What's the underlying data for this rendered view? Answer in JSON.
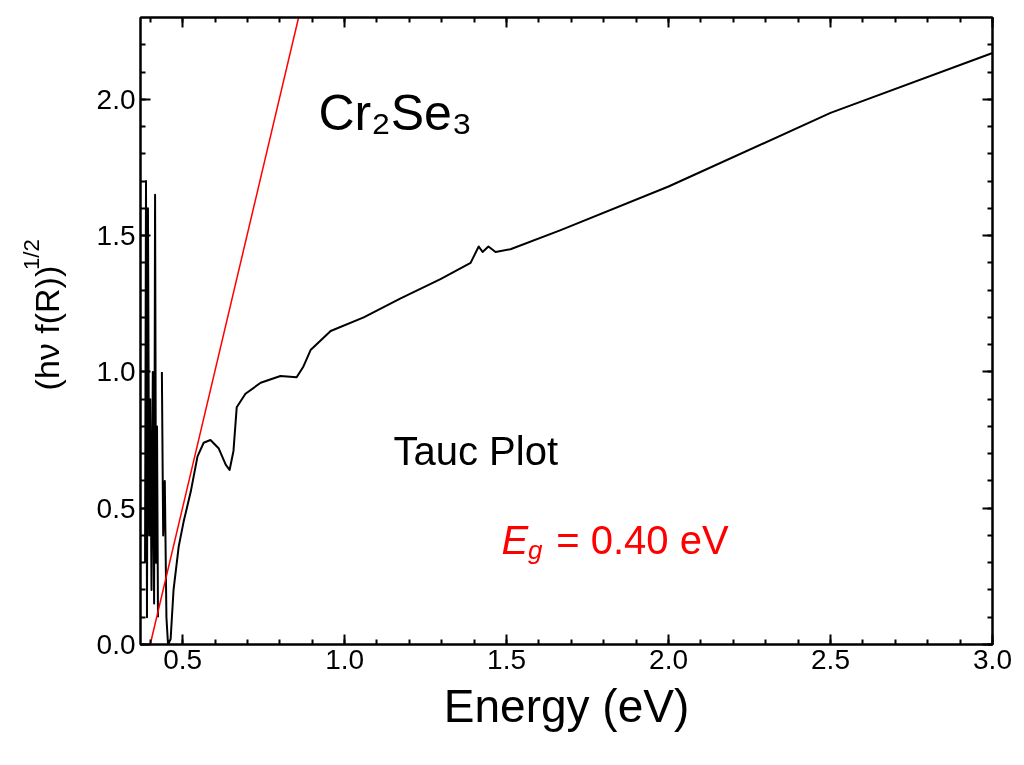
{
  "chart_data": {
    "type": "line",
    "xlabel": "Energy (eV)",
    "ylabel": "(hν f(R))$^{1/2}$",
    "annotations": [
      "Cr₂Se₃",
      "Tauc Plot"
    ],
    "xlim": [
      0.37,
      3.0
    ],
    "ylim": [
      0,
      2.3
    ],
    "xticks": [
      0.5,
      {
        "value": 1,
        "label": "1.0"
      },
      1.5,
      {
        "value": 2,
        "label": "2.0"
      },
      2.5,
      {
        "value": 3,
        "label": "3.0"
      }
    ],
    "yticks": [
      {
        "value": 0,
        "label": "0.0"
      },
      0.5,
      {
        "value": 1,
        "label": "1.0"
      },
      1.5,
      {
        "value": 2,
        "label": "2.0"
      }
    ],
    "grid": false,
    "series": [
      {
        "color": "#000000",
        "x": [
          0.384,
          0.387,
          0.39,
          0.393,
          0.397,
          0.4,
          0.404,
          0.408,
          0.412,
          0.415,
          0.418,
          0.421,
          0.424,
          0.428,
          0.432,
          0.436,
          0.44,
          0.445,
          0.45,
          0.455,
          0.463,
          0.472,
          0.488,
          0.503,
          0.525,
          0.546,
          0.565,
          0.586,
          0.611,
          0.633,
          0.645,
          0.657,
          0.667,
          0.694,
          0.741,
          0.802,
          0.852,
          0.873,
          0.895,
          0.957,
          1.059,
          1.173,
          1.296,
          1.389,
          1.414,
          1.426,
          1.444,
          1.466,
          1.512,
          1.667,
          2.0,
          2.5,
          3.0
        ],
        "values": [
          0.3,
          1.7,
          0.1,
          1.6,
          0.4,
          0.9,
          0.2,
          1.0,
          0.15,
          1.65,
          0.3,
          0.8,
          0.1,
          null,
          null,
          1.0,
          0.4,
          0.6,
          0.1,
          0.0,
          0.02,
          0.2,
          0.36,
          0.45,
          0.56,
          0.69,
          0.74,
          0.75,
          0.72,
          0.66,
          0.64,
          0.71,
          0.87,
          0.92,
          0.96,
          0.985,
          0.98,
          1.02,
          1.08,
          1.15,
          1.2,
          1.27,
          1.34,
          1.4,
          1.46,
          1.44,
          1.46,
          1.44,
          1.45,
          1.52,
          1.68,
          1.95,
          2.17
        ]
      },
      {
        "name": "E$_{g}$ = 0.40 eV",
        "color": "#ff0000",
        "x": [
          0.4,
          0.858
        ],
        "values": [
          0.0,
          2.3
        ]
      }
    ]
  }
}
